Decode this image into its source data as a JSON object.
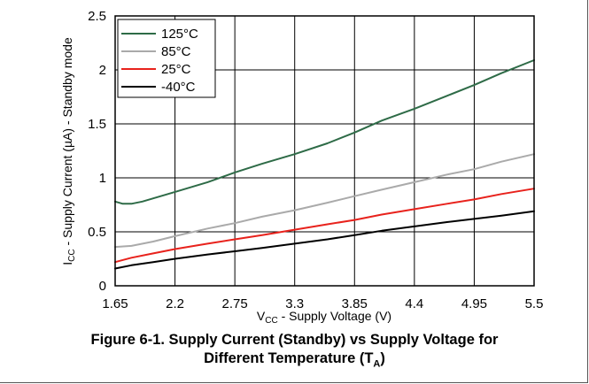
{
  "chart_data": {
    "type": "line",
    "title": "",
    "xlabel": {
      "base": "V",
      "sub": "CC",
      "rest": " - Supply Voltage (V)"
    },
    "ylabel": {
      "base": "I",
      "sub": "CC",
      "rest": " - Supply Current (µA) - Standby mode"
    },
    "xlim": [
      1.65,
      5.5
    ],
    "ylim": [
      0,
      2.5
    ],
    "xticks": [
      "1.65",
      "2.2",
      "2.75",
      "3.3",
      "3.85",
      "4.4",
      "4.95",
      "5.5"
    ],
    "yticks": [
      "0",
      "0.5",
      "1",
      "1.5",
      "2",
      "2.5"
    ],
    "grid": true,
    "legend_position": "top-left",
    "series": [
      {
        "name": "125°C",
        "color": "#2e6b47",
        "x": [
          1.65,
          1.72,
          1.8,
          1.9,
          2.0,
          2.2,
          2.5,
          2.75,
          3.0,
          3.3,
          3.6,
          3.85,
          4.1,
          4.4,
          4.7,
          4.95,
          5.2,
          5.5
        ],
        "y": [
          0.78,
          0.76,
          0.76,
          0.78,
          0.81,
          0.87,
          0.96,
          1.05,
          1.13,
          1.22,
          1.32,
          1.42,
          1.53,
          1.64,
          1.76,
          1.86,
          1.97,
          2.09
        ]
      },
      {
        "name": "85°C",
        "color": "#aaaaaa",
        "x": [
          1.65,
          1.8,
          2.0,
          2.2,
          2.5,
          2.75,
          3.0,
          3.3,
          3.6,
          3.85,
          4.1,
          4.4,
          4.7,
          4.95,
          5.2,
          5.5
        ],
        "y": [
          0.36,
          0.37,
          0.41,
          0.46,
          0.53,
          0.58,
          0.64,
          0.7,
          0.77,
          0.83,
          0.89,
          0.96,
          1.03,
          1.08,
          1.15,
          1.22
        ]
      },
      {
        "name": "25°C",
        "color": "#e8221c",
        "x": [
          1.65,
          1.8,
          2.0,
          2.2,
          2.5,
          2.75,
          3.0,
          3.3,
          3.6,
          3.85,
          4.1,
          4.4,
          4.7,
          4.95,
          5.2,
          5.5
        ],
        "y": [
          0.22,
          0.26,
          0.3,
          0.34,
          0.39,
          0.43,
          0.47,
          0.52,
          0.57,
          0.61,
          0.66,
          0.71,
          0.76,
          0.8,
          0.85,
          0.9
        ]
      },
      {
        "name": "-40°C",
        "color": "#000000",
        "x": [
          1.65,
          1.8,
          2.0,
          2.2,
          2.5,
          2.75,
          3.0,
          3.3,
          3.6,
          3.85,
          4.1,
          4.4,
          4.7,
          4.95,
          5.2,
          5.5
        ],
        "y": [
          0.16,
          0.19,
          0.22,
          0.25,
          0.29,
          0.32,
          0.35,
          0.39,
          0.43,
          0.47,
          0.51,
          0.55,
          0.59,
          0.62,
          0.65,
          0.69
        ]
      }
    ]
  },
  "caption": {
    "line1": "Figure 6-1. Supply Current (Standby) vs Supply Voltage for",
    "line2_text": "Different Temperature (T",
    "line2_sub": "A",
    "line2_end": ")"
  }
}
